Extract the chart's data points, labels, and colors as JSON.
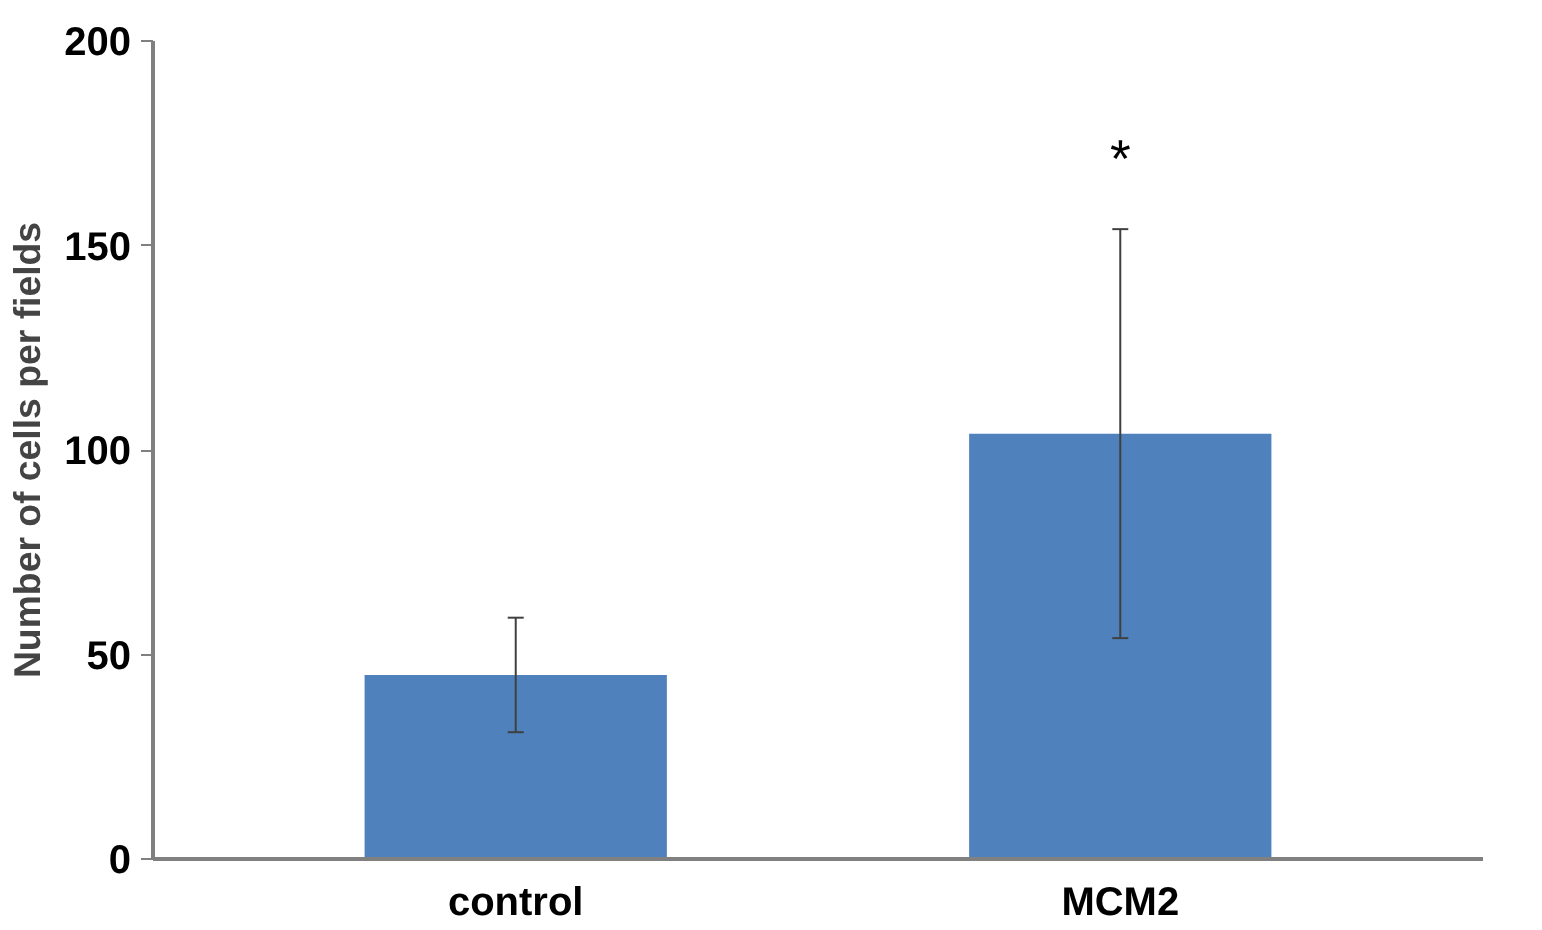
{
  "chart_data": {
    "type": "bar",
    "ylabel": "Number of cells per fields",
    "categories": [
      "control",
      "MCM2"
    ],
    "series": [
      {
        "color": "#4f81bd",
        "values": [
          45,
          104
        ],
        "errors": [
          14,
          50
        ]
      }
    ],
    "ylim": [
      0,
      200
    ],
    "yticks": [
      0,
      50,
      100,
      150,
      200
    ],
    "grid": false,
    "annotations": [
      "*"
    ]
  }
}
